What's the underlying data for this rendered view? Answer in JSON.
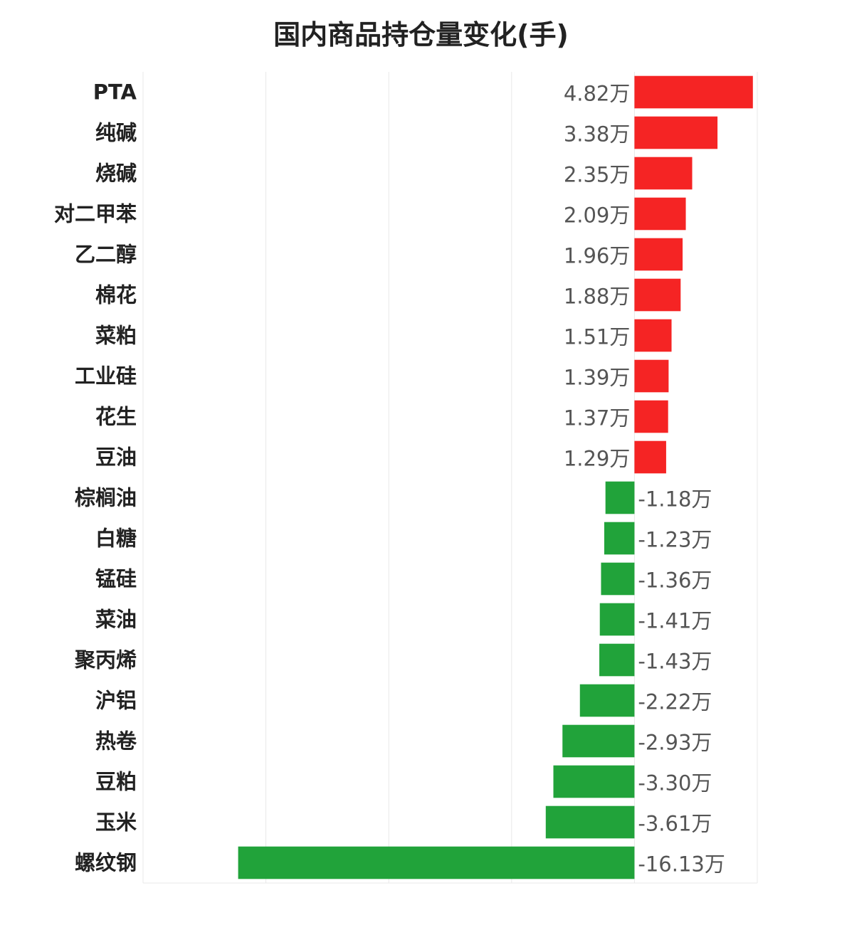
{
  "chart_data": {
    "type": "bar",
    "orientation": "horizontal",
    "title": "国内商品持仓量变化(手)",
    "categories": [
      "PTA",
      "纯碱",
      "烧碱",
      "对二甲苯",
      "乙二醇",
      "棉花",
      "菜粕",
      "工业硅",
      "花生",
      "豆油",
      "棕榈油",
      "白糖",
      "锰硅",
      "菜油",
      "聚丙烯",
      "沪铝",
      "热卷",
      "豆粕",
      "玉米",
      "螺纹钢"
    ],
    "values": [
      4.82,
      3.38,
      2.35,
      2.09,
      1.96,
      1.88,
      1.51,
      1.39,
      1.37,
      1.29,
      -1.18,
      -1.23,
      -1.36,
      -1.41,
      -1.43,
      -2.22,
      -2.93,
      -3.3,
      -3.61,
      -16.13
    ],
    "value_labels": [
      "4.82万",
      "3.38万",
      "2.35万",
      "2.09万",
      "1.96万",
      "1.88万",
      "1.51万",
      "1.39万",
      "1.37万",
      "1.29万",
      "-1.18万",
      "-1.23万",
      "-1.36万",
      "-1.41万",
      "-1.43万",
      "-2.22万",
      "-2.93万",
      "-3.30万",
      "-3.61万",
      "-16.13万"
    ],
    "unit": "万手",
    "xlim": [
      -20,
      5
    ],
    "grid": true,
    "colors": {
      "positive": "#f52424",
      "negative": "#21a33a",
      "grid": "#e8e8e8"
    }
  }
}
